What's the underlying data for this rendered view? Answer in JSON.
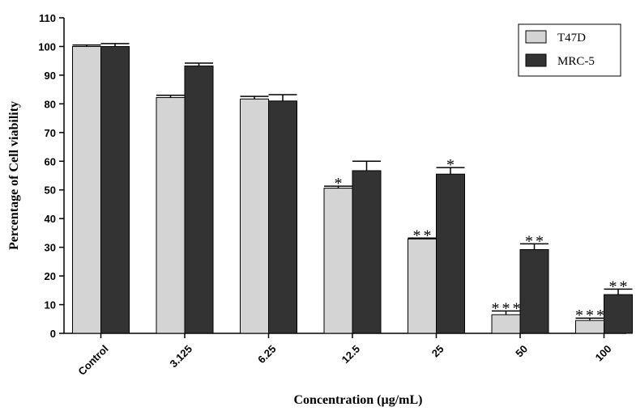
{
  "chart_data": {
    "type": "bar",
    "categories": [
      "Control",
      "3.125",
      "6.25",
      "12.5",
      "25",
      "50",
      "100"
    ],
    "series": [
      {
        "name": "T47D",
        "color": "#d4d4d4",
        "values": [
          100,
          82.2,
          81.7,
          50.6,
          32.9,
          6.5,
          4.5
        ],
        "errors": [
          0.5,
          0.8,
          0.9,
          0.7,
          0.3,
          1.3,
          0.8
        ],
        "significance": [
          "",
          "",
          "",
          "*",
          "**",
          "***",
          "***"
        ]
      },
      {
        "name": "MRC-5",
        "color": "#333333",
        "values": [
          100,
          93.2,
          81.0,
          56.7,
          55.5,
          29.2,
          13.5
        ],
        "errors": [
          1.0,
          1.0,
          2.2,
          3.3,
          2.3,
          2.0,
          1.9
        ],
        "significance": [
          "",
          "",
          "",
          "",
          "*",
          "**",
          "**"
        ]
      }
    ],
    "xlabel": "Concentration (µg/mL)",
    "ylabel": "Percentage of Cell viability",
    "ylim": [
      0,
      110
    ],
    "yticks": [
      "0",
      "10",
      "20",
      "30",
      "40",
      "50",
      "60",
      "70",
      "80",
      "90",
      "100",
      "110"
    ],
    "legend_position": "top-right",
    "grid": false
  }
}
